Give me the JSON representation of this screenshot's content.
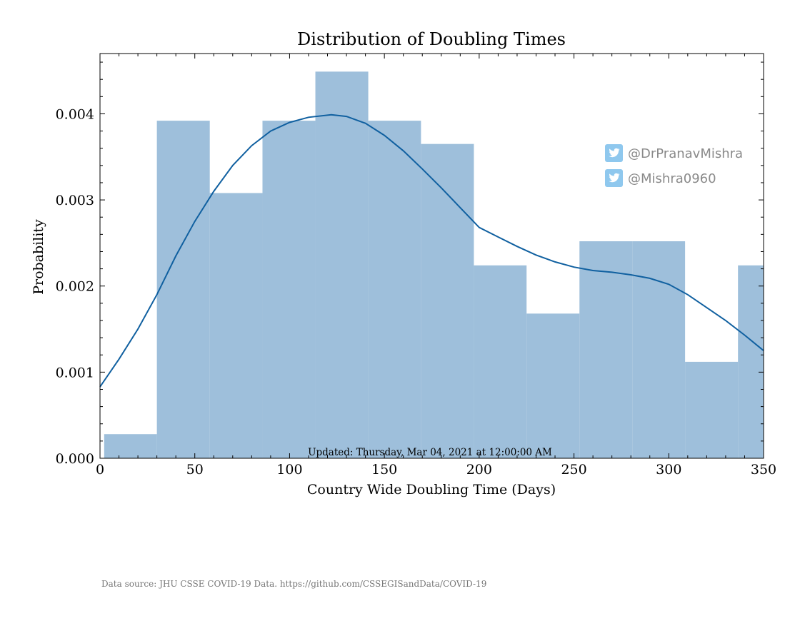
{
  "chart_data": {
    "type": "bar",
    "title": "Distribution of Doubling Times",
    "xlabel": "Country Wide Doubling Time (Days)",
    "ylabel": "Probability",
    "xlim": [
      0,
      350
    ],
    "ylim": [
      0,
      0.0047
    ],
    "xticks": [
      0,
      50,
      100,
      150,
      200,
      250,
      300,
      350
    ],
    "xtick_labels": [
      "0",
      "50",
      "100",
      "150",
      "200",
      "250",
      "300",
      "350"
    ],
    "yticks": [
      0,
      0.001,
      0.002,
      0.003,
      0.004
    ],
    "ytick_labels": [
      "0.000",
      "0.001",
      "0.002",
      "0.003",
      "0.004"
    ],
    "grid": false,
    "bins": [
      {
        "x0": 2.2,
        "x1": 30.0,
        "value": 0.00028
      },
      {
        "x0": 30.0,
        "x1": 57.9,
        "value": 0.00392
      },
      {
        "x0": 57.9,
        "x1": 85.7,
        "value": 0.00308
      },
      {
        "x0": 85.7,
        "x1": 113.6,
        "value": 0.00392
      },
      {
        "x0": 113.6,
        "x1": 141.5,
        "value": 0.00449
      },
      {
        "x0": 141.5,
        "x1": 169.3,
        "value": 0.00392
      },
      {
        "x0": 169.3,
        "x1": 197.2,
        "value": 0.00365
      },
      {
        "x0": 197.2,
        "x1": 225.0,
        "value": 0.00224
      },
      {
        "x0": 225.0,
        "x1": 252.9,
        "value": 0.00168
      },
      {
        "x0": 252.9,
        "x1": 280.8,
        "value": 0.00252
      },
      {
        "x0": 280.8,
        "x1": 308.6,
        "value": 0.00252
      },
      {
        "x0": 308.6,
        "x1": 336.5,
        "value": 0.00112
      },
      {
        "x0": 336.5,
        "x1": 364.3,
        "value": 0.00224
      }
    ],
    "kde": {
      "x": [
        0,
        10,
        20,
        30,
        40,
        50,
        60,
        70,
        80,
        90,
        100,
        110,
        122,
        130,
        140,
        150,
        160,
        170,
        180,
        190,
        200,
        210,
        220,
        230,
        240,
        250,
        260,
        270,
        280,
        290,
        300,
        310,
        320,
        330,
        340,
        350
      ],
      "y": [
        0.00083,
        0.00115,
        0.0015,
        0.0019,
        0.00235,
        0.00275,
        0.0031,
        0.0034,
        0.00363,
        0.0038,
        0.0039,
        0.00396,
        0.00399,
        0.00397,
        0.00389,
        0.00375,
        0.00357,
        0.00336,
        0.00314,
        0.00291,
        0.00268,
        0.00257,
        0.00246,
        0.00236,
        0.00228,
        0.00222,
        0.00218,
        0.00216,
        0.00213,
        0.00209,
        0.00202,
        0.0019,
        0.00175,
        0.0016,
        0.00143,
        0.00125
      ]
    },
    "colors": {
      "bars": "#9ebfdb",
      "kde": "#1060a0"
    }
  },
  "annotations": {
    "updated": "Updated: Thursday, Mar 04, 2021 at 12:00:00 AM",
    "source": "Data source: JHU CSSE COVID-19 Data. https://github.com/CSSEGISandData/COVID-19"
  },
  "social": [
    {
      "icon": "twitter-icon",
      "handle": "@DrPranavMishra"
    },
    {
      "icon": "twitter-icon",
      "handle": "@Mishra0960"
    }
  ]
}
